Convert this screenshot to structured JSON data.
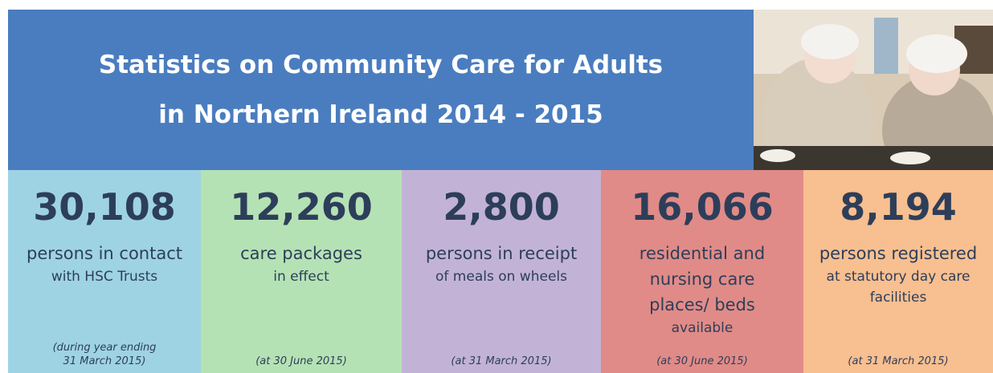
{
  "header": {
    "title": [
      "Statistics on Community Care for Adults",
      "in Northern Ireland 2014 - 2015"
    ]
  },
  "tiles": [
    {
      "number": "30,108",
      "main": [
        "persons in contact"
      ],
      "sub": [
        "with HSC Trusts"
      ],
      "note": [
        "(during year ending",
        "31 March 2015)"
      ]
    },
    {
      "number": "12,260",
      "main": [
        "care packages"
      ],
      "sub": [
        "in effect"
      ],
      "note": [
        "(at 30 June 2015)"
      ]
    },
    {
      "number": "2,800",
      "main": [
        "persons in receipt"
      ],
      "sub": [
        "of meals on wheels"
      ],
      "note": [
        "(at 31 March 2015)"
      ]
    },
    {
      "number": "16,066",
      "main": [
        "residential and",
        "nursing care",
        "places/ beds"
      ],
      "sub": [
        "available"
      ],
      "note": [
        "(at 30 June 2015)"
      ]
    },
    {
      "number": "8,194",
      "main": [
        "persons registered"
      ],
      "sub": [
        "at statutory day care",
        "facilities"
      ],
      "note": [
        "(at 31 March 2015)"
      ]
    }
  ]
}
